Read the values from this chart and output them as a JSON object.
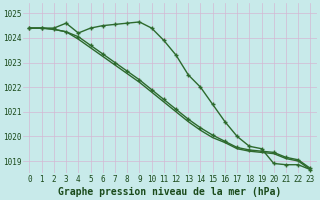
{
  "title": "Graphe pression niveau de la mer (hPa)",
  "x": [
    0,
    1,
    2,
    3,
    4,
    5,
    6,
    7,
    8,
    9,
    10,
    11,
    12,
    13,
    14,
    15,
    16,
    17,
    18,
    19,
    20,
    21,
    22,
    23
  ],
  "line1": [
    1024.4,
    1024.4,
    1024.4,
    1024.6,
    1024.2,
    1024.4,
    1024.5,
    1024.55,
    1024.6,
    1024.65,
    1024.4,
    1023.9,
    1023.3,
    1022.5,
    1022.0,
    1021.3,
    1020.6,
    1020.0,
    1019.6,
    1019.5,
    1018.9,
    1018.85,
    1018.85,
    1018.65
  ],
  "line2": [
    1024.4,
    1024.4,
    1024.35,
    1024.25,
    1024.05,
    1023.7,
    1023.35,
    1023.0,
    1022.65,
    1022.3,
    1021.9,
    1021.5,
    1021.1,
    1020.7,
    1020.35,
    1020.05,
    1019.8,
    1019.55,
    1019.45,
    1019.4,
    1019.35,
    1019.15,
    1019.05,
    1018.7
  ],
  "line3": [
    1024.4,
    1024.4,
    1024.35,
    1024.25,
    1023.95,
    1023.6,
    1023.25,
    1022.9,
    1022.55,
    1022.2,
    1021.8,
    1021.4,
    1021.0,
    1020.6,
    1020.25,
    1019.95,
    1019.75,
    1019.5,
    1019.4,
    1019.35,
    1019.3,
    1019.1,
    1019.0,
    1018.65
  ],
  "line_color": "#2d6a2d",
  "marker_color": "#2d6a2d",
  "bg_color": "#c8eaea",
  "grid_color": "#d4b8d4",
  "label_color": "#1a4a1a",
  "ylim": [
    1018.5,
    1025.4
  ],
  "yticks": [
    1019,
    1020,
    1021,
    1022,
    1023,
    1024,
    1025
  ],
  "xticks": [
    0,
    1,
    2,
    3,
    4,
    5,
    6,
    7,
    8,
    9,
    10,
    11,
    12,
    13,
    14,
    15,
    16,
    17,
    18,
    19,
    20,
    21,
    22,
    23
  ],
  "title_fontsize": 7,
  "tick_fontsize": 5.5,
  "marker_size": 3.5,
  "line_width": 1.0
}
